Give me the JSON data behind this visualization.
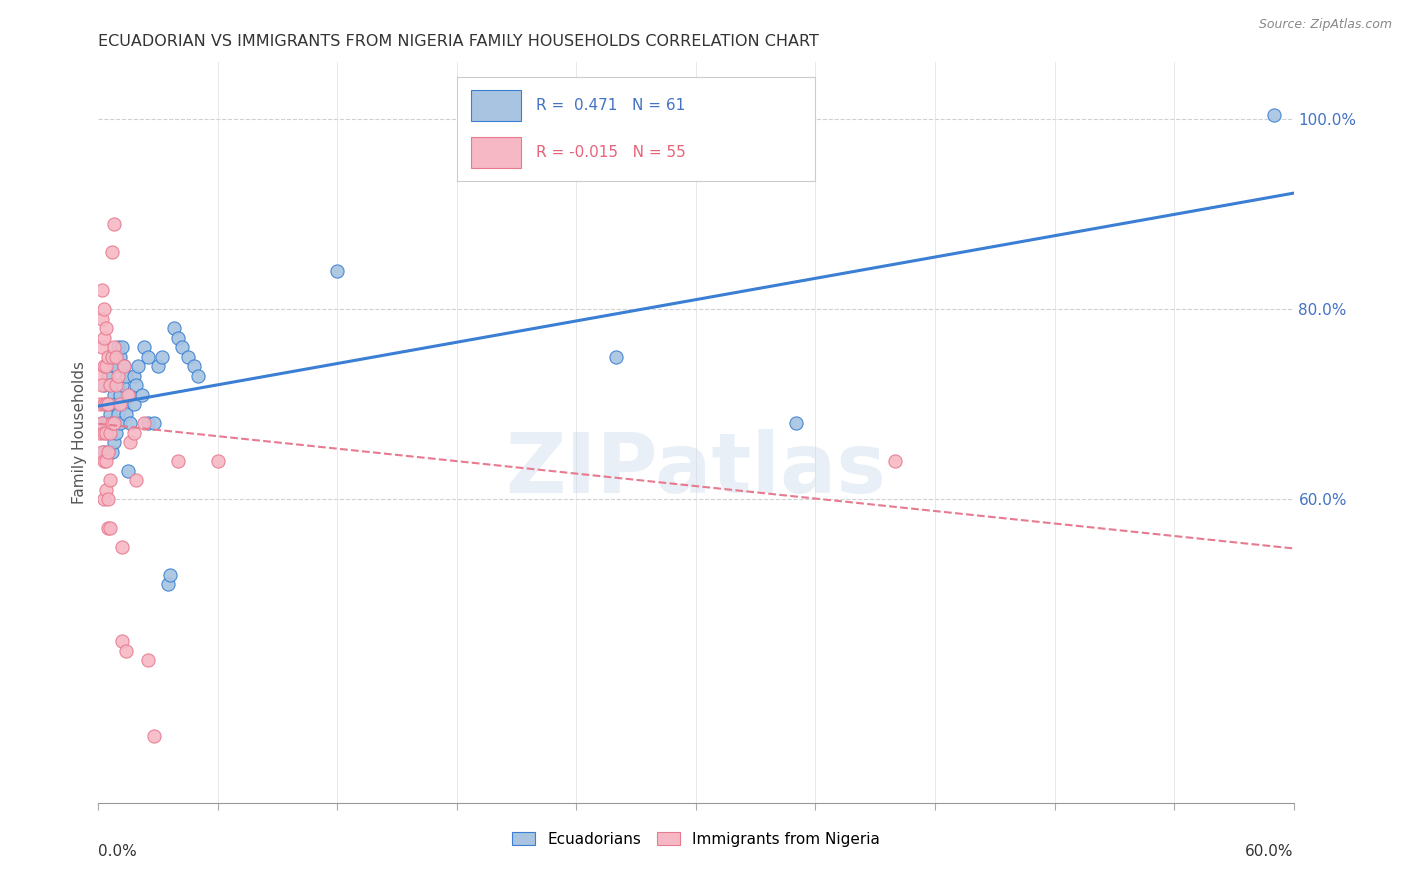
{
  "title": "ECUADORIAN VS IMMIGRANTS FROM NIGERIA FAMILY HOUSEHOLDS CORRELATION CHART",
  "source": "Source: ZipAtlas.com",
  "ylabel": "Family Households",
  "watermark": "ZIPatlas",
  "blue_color": "#a8c4e0",
  "blue_line_color": "#3a7fd4",
  "pink_color": "#f5b8c4",
  "pink_line_color": "#e87a90",
  "legend_text_color": "#4472c4",
  "legend_pink_text_color": "#e8637a",
  "blue_scatter": [
    [
      0.002,
      0.68
    ],
    [
      0.003,
      0.72
    ],
    [
      0.003,
      0.65
    ],
    [
      0.004,
      0.7
    ],
    [
      0.004,
      0.68
    ],
    [
      0.005,
      0.73
    ],
    [
      0.005,
      0.68
    ],
    [
      0.005,
      0.65
    ],
    [
      0.006,
      0.72
    ],
    [
      0.006,
      0.69
    ],
    [
      0.006,
      0.67
    ],
    [
      0.007,
      0.75
    ],
    [
      0.007,
      0.7
    ],
    [
      0.007,
      0.68
    ],
    [
      0.007,
      0.65
    ],
    [
      0.008,
      0.74
    ],
    [
      0.008,
      0.71
    ],
    [
      0.008,
      0.68
    ],
    [
      0.008,
      0.66
    ],
    [
      0.009,
      0.74
    ],
    [
      0.009,
      0.7
    ],
    [
      0.009,
      0.67
    ],
    [
      0.01,
      0.76
    ],
    [
      0.01,
      0.72
    ],
    [
      0.01,
      0.69
    ],
    [
      0.011,
      0.75
    ],
    [
      0.011,
      0.71
    ],
    [
      0.011,
      0.68
    ],
    [
      0.012,
      0.76
    ],
    [
      0.012,
      0.72
    ],
    [
      0.013,
      0.74
    ],
    [
      0.013,
      0.7
    ],
    [
      0.014,
      0.73
    ],
    [
      0.014,
      0.69
    ],
    [
      0.015,
      0.63
    ],
    [
      0.016,
      0.71
    ],
    [
      0.016,
      0.68
    ],
    [
      0.018,
      0.73
    ],
    [
      0.018,
      0.7
    ],
    [
      0.019,
      0.72
    ],
    [
      0.02,
      0.74
    ],
    [
      0.022,
      0.71
    ],
    [
      0.023,
      0.76
    ],
    [
      0.025,
      0.75
    ],
    [
      0.025,
      0.68
    ],
    [
      0.028,
      0.68
    ],
    [
      0.03,
      0.74
    ],
    [
      0.032,
      0.75
    ],
    [
      0.035,
      0.51
    ],
    [
      0.036,
      0.52
    ],
    [
      0.038,
      0.78
    ],
    [
      0.04,
      0.77
    ],
    [
      0.042,
      0.76
    ],
    [
      0.045,
      0.75
    ],
    [
      0.048,
      0.74
    ],
    [
      0.05,
      0.73
    ],
    [
      0.12,
      0.84
    ],
    [
      0.26,
      0.75
    ],
    [
      0.35,
      0.68
    ],
    [
      0.59,
      1.005
    ]
  ],
  "pink_scatter": [
    [
      0.001,
      0.73
    ],
    [
      0.001,
      0.7
    ],
    [
      0.001,
      0.67
    ],
    [
      0.002,
      0.82
    ],
    [
      0.002,
      0.79
    ],
    [
      0.002,
      0.76
    ],
    [
      0.002,
      0.72
    ],
    [
      0.002,
      0.68
    ],
    [
      0.002,
      0.65
    ],
    [
      0.003,
      0.8
    ],
    [
      0.003,
      0.77
    ],
    [
      0.003,
      0.74
    ],
    [
      0.003,
      0.7
    ],
    [
      0.003,
      0.67
    ],
    [
      0.003,
      0.64
    ],
    [
      0.003,
      0.6
    ],
    [
      0.004,
      0.78
    ],
    [
      0.004,
      0.74
    ],
    [
      0.004,
      0.7
    ],
    [
      0.004,
      0.67
    ],
    [
      0.004,
      0.64
    ],
    [
      0.004,
      0.61
    ],
    [
      0.005,
      0.75
    ],
    [
      0.005,
      0.7
    ],
    [
      0.005,
      0.65
    ],
    [
      0.005,
      0.6
    ],
    [
      0.005,
      0.57
    ],
    [
      0.006,
      0.72
    ],
    [
      0.006,
      0.67
    ],
    [
      0.006,
      0.62
    ],
    [
      0.006,
      0.57
    ],
    [
      0.007,
      0.86
    ],
    [
      0.007,
      0.75
    ],
    [
      0.007,
      0.68
    ],
    [
      0.008,
      0.89
    ],
    [
      0.008,
      0.76
    ],
    [
      0.008,
      0.68
    ],
    [
      0.009,
      0.75
    ],
    [
      0.009,
      0.72
    ],
    [
      0.01,
      0.73
    ],
    [
      0.011,
      0.7
    ],
    [
      0.012,
      0.55
    ],
    [
      0.012,
      0.45
    ],
    [
      0.013,
      0.74
    ],
    [
      0.014,
      0.44
    ],
    [
      0.015,
      0.71
    ],
    [
      0.016,
      0.66
    ],
    [
      0.018,
      0.67
    ],
    [
      0.019,
      0.62
    ],
    [
      0.023,
      0.68
    ],
    [
      0.025,
      0.43
    ],
    [
      0.028,
      0.35
    ],
    [
      0.04,
      0.64
    ],
    [
      0.06,
      0.64
    ],
    [
      0.4,
      0.64
    ]
  ],
  "xlim": [
    0,
    0.6
  ],
  "ylim": [
    0.28,
    1.06
  ],
  "right_yticks": [
    0.6,
    0.8,
    1.0
  ],
  "right_ytick_labels": [
    "60.0%",
    "80.0%",
    "100.0%"
  ],
  "x_ticks": [
    0.0,
    0.06,
    0.12,
    0.18,
    0.24,
    0.3,
    0.36,
    0.42,
    0.48,
    0.54,
    0.6
  ]
}
